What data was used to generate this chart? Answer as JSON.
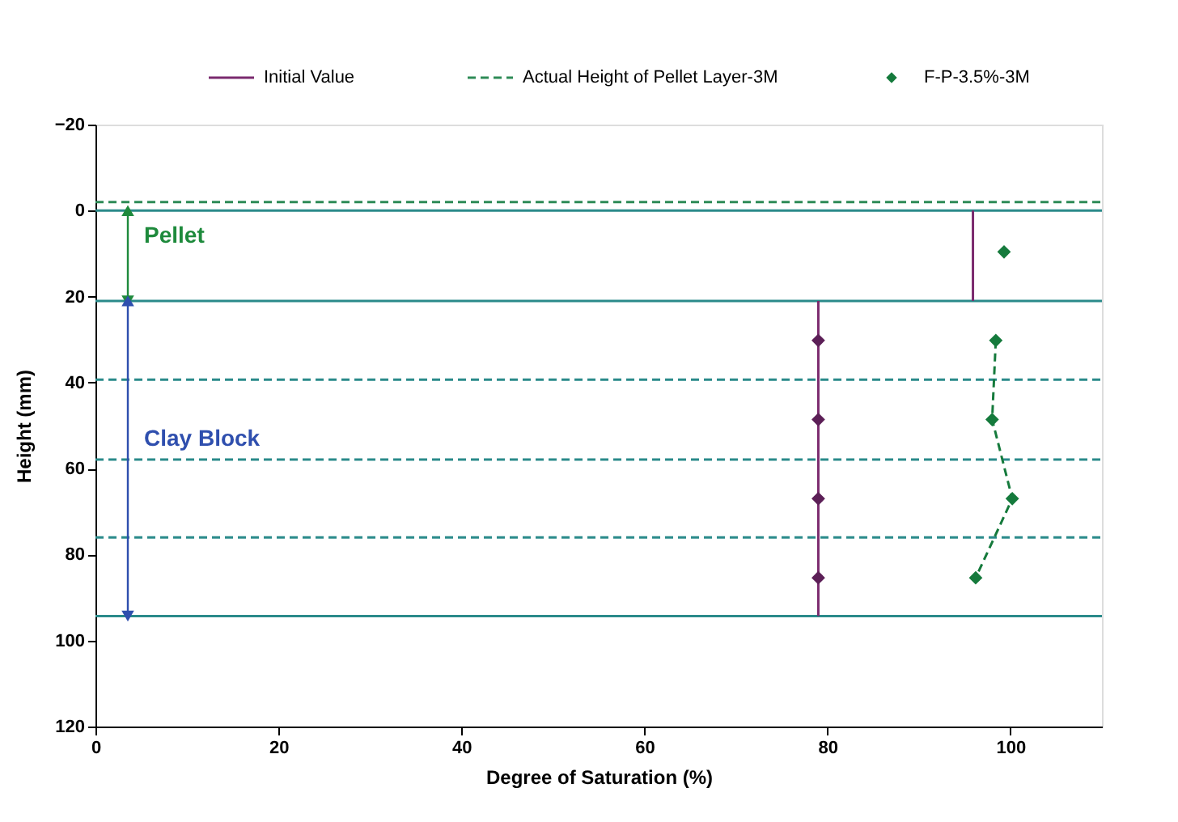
{
  "chart_data": {
    "type": "line",
    "xlabel": "Degree of Saturation (%)",
    "ylabel": "Height (mm)",
    "xlim": [
      0,
      110
    ],
    "xticks": [
      0,
      20,
      40,
      60,
      80,
      100
    ],
    "ylim": [
      120,
      -20
    ],
    "yticks": [
      -20,
      0,
      20,
      40,
      60,
      80,
      100,
      120
    ],
    "grid": false,
    "legend": "top",
    "series": [
      {
        "name": "Initial Value",
        "color": "#7b2a6e",
        "x": [
          95.9,
          95.9,
          null,
          79,
          79
        ],
        "values": [
          0,
          21,
          null,
          21,
          94.3
        ],
        "marker": "none",
        "line_style": "solid"
      },
      {
        "type": "scatter",
        "color": "#5c1f57",
        "x": [
          79,
          79,
          79,
          79
        ],
        "values": [
          30.2,
          48.6,
          67.0,
          85.4
        ],
        "marker": "diamond"
      },
      {
        "name": "Actual Height of Pellet Layer-3M",
        "color": "#2e8b57",
        "x": [
          0,
          110
        ],
        "values": [
          -2,
          -2
        ],
        "marker": "none",
        "line_style": "dashed"
      },
      {
        "name": "F-P-3.5%-3M",
        "color": "#157a3c",
        "x": [
          99.3,
          null,
          98.4,
          98.0,
          100.2,
          96.2
        ],
        "values": [
          9.6,
          null,
          30.2,
          48.6,
          67.0,
          85.4
        ],
        "marker": "diamond",
        "line_style": "dashed"
      }
    ],
    "ref_lines": [
      {
        "axis": "y",
        "value": 0,
        "color": "#2a8a8a",
        "line_style": "solid"
      },
      {
        "axis": "y",
        "value": 21,
        "color": "#2a8a8a",
        "line_style": "solid"
      },
      {
        "axis": "y",
        "value": 39.3,
        "color": "#2a8a8a",
        "line_style": "dashed"
      },
      {
        "axis": "y",
        "value": 57.9,
        "color": "#2a8a8a",
        "line_style": "dashed"
      },
      {
        "axis": "y",
        "value": 76,
        "color": "#2a8a8a",
        "line_style": "dashed"
      },
      {
        "axis": "y",
        "value": 94.3,
        "color": "#2a8a8a",
        "line_style": "solid"
      }
    ],
    "annotations": [
      "Pellet",
      "Clay Block"
    ]
  }
}
